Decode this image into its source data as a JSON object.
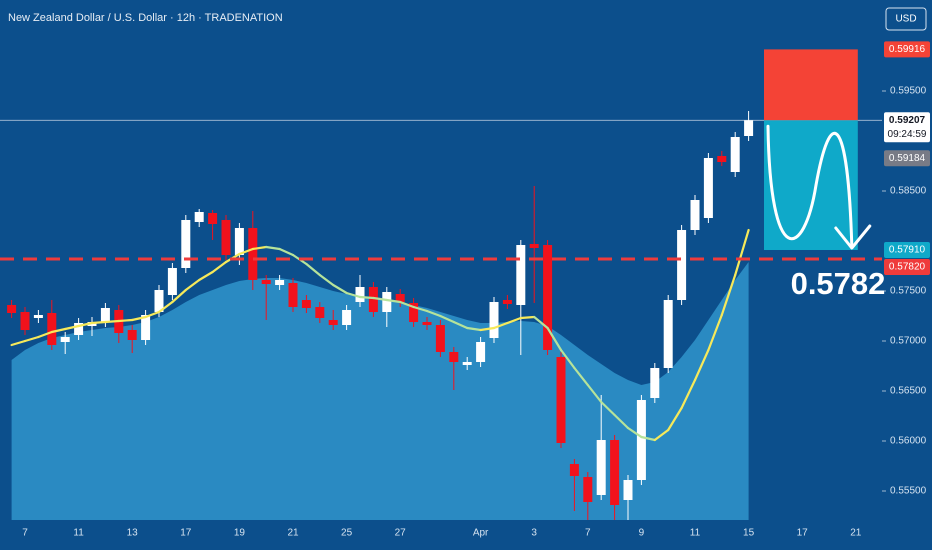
{
  "chart_data": {
    "type": "candlestick",
    "title": "New Zealand Dollar / U.S. Dollar · 12h · TRADENATION",
    "currency": "USD",
    "categories": [
      null,
      "7",
      null,
      null,
      null,
      "11",
      null,
      null,
      null,
      "13",
      null,
      null,
      null,
      "17",
      null,
      null,
      null,
      "19",
      null,
      null,
      null,
      "21",
      null,
      null,
      null,
      "25",
      null,
      null,
      null,
      "27",
      null,
      null,
      null,
      null,
      null,
      "Apr",
      null,
      null,
      null,
      "3",
      null,
      null,
      null,
      "7",
      null,
      null,
      null,
      "9",
      null,
      null,
      null,
      "11",
      null,
      null,
      null,
      "15",
      null,
      null,
      null,
      "17",
      null,
      null,
      null,
      "21"
    ],
    "open": [
      0.5736,
      0.5729,
      0.5723,
      0.5728,
      0.5699,
      0.5706,
      0.5715,
      0.5719,
      0.5731,
      0.5711,
      0.5701,
      0.5729,
      0.5746,
      0.5773,
      0.5819,
      0.5828,
      0.5821,
      0.5786,
      0.5813,
      0.5761,
      0.5756,
      0.5758,
      0.5741,
      0.5734,
      0.5721,
      0.5716,
      0.5739,
      0.5754,
      0.5729,
      0.5747,
      0.5738,
      0.5719,
      0.5716,
      0.5689,
      0.5676,
      0.5679,
      0.5703,
      0.5741,
      0.5736,
      0.5797,
      0.5796,
      0.5684,
      0.5577,
      0.5564,
      0.5546,
      0.5601,
      0.5541,
      0.5561,
      0.5643,
      0.5673,
      0.5741,
      0.5811,
      0.5823,
      0.5885,
      0.5869,
      0.5905,
      null,
      null,
      null,
      null,
      null,
      null,
      null,
      null
    ],
    "high": [
      0.5741,
      0.5734,
      0.5731,
      0.5741,
      0.5709,
      0.5723,
      0.5724,
      0.5738,
      0.5736,
      0.5716,
      0.5731,
      0.5756,
      0.5778,
      0.5826,
      0.5832,
      0.5831,
      0.5826,
      0.5818,
      0.583,
      0.5766,
      0.5766,
      0.5763,
      0.5746,
      0.5739,
      0.5731,
      0.5736,
      0.5766,
      0.5759,
      0.5754,
      0.5752,
      0.5743,
      0.5724,
      0.5721,
      0.5694,
      0.5684,
      0.5704,
      0.5744,
      0.5746,
      0.5801,
      0.5855,
      0.5801,
      0.5689,
      0.5582,
      0.5569,
      0.5646,
      0.5606,
      0.5566,
      0.5646,
      0.5678,
      0.5746,
      0.5816,
      0.5846,
      0.5888,
      0.589,
      0.5909,
      0.593,
      null,
      null,
      null,
      null,
      null,
      null,
      null,
      null
    ],
    "low": [
      0.5723,
      0.5706,
      0.5718,
      0.5691,
      0.5687,
      0.5701,
      0.5705,
      0.5714,
      0.5698,
      0.5688,
      0.5696,
      0.5724,
      0.5741,
      0.5768,
      0.5814,
      0.5801,
      0.5781,
      0.5776,
      0.5751,
      0.5721,
      0.5751,
      0.5729,
      0.5728,
      0.5718,
      0.5711,
      0.5711,
      0.5734,
      0.5724,
      0.5714,
      0.5734,
      0.5714,
      0.5711,
      0.5684,
      0.5651,
      0.5671,
      0.5674,
      0.5698,
      0.5732,
      0.5686,
      0.5738,
      0.5686,
      0.5593,
      0.553,
      0.5521,
      0.5541,
      0.5521,
      0.5521,
      0.5556,
      0.5638,
      0.5668,
      0.5736,
      0.5806,
      0.5818,
      0.5875,
      0.5864,
      0.59,
      null,
      null,
      null,
      null,
      null,
      null,
      null,
      null
    ],
    "close": [
      0.5728,
      0.5711,
      0.5726,
      0.5696,
      0.5704,
      0.5718,
      0.5719,
      0.5733,
      0.5708,
      0.5701,
      0.5726,
      0.5751,
      0.5773,
      0.5821,
      0.5829,
      0.5817,
      0.5786,
      0.5813,
      0.5761,
      0.5757,
      0.5761,
      0.5734,
      0.5733,
      0.5723,
      0.5716,
      0.5731,
      0.5754,
      0.5729,
      0.5749,
      0.5739,
      0.5719,
      0.5716,
      0.5689,
      0.5679,
      0.5679,
      0.5699,
      0.5739,
      0.5737,
      0.5796,
      0.5793,
      0.5691,
      0.5598,
      0.5565,
      0.5539,
      0.5601,
      0.5536,
      0.5561,
      0.5641,
      0.5673,
      0.5741,
      0.5811,
      0.5841,
      0.5883,
      0.5879,
      0.5904,
      0.59207,
      null,
      null,
      null,
      null,
      null,
      null,
      null,
      null
    ],
    "up_color": "#ffffff",
    "down_color": "#f2121c",
    "ylim": [
      0.5521,
      0.6041
    ],
    "yticks": [
      {
        "value": 0.555,
        "label": "0.55500"
      },
      {
        "value": 0.56,
        "label": "0.56000"
      },
      {
        "value": 0.565,
        "label": "0.56500"
      },
      {
        "value": 0.57,
        "label": "0.57000"
      },
      {
        "value": 0.575,
        "label": "0.57500"
      },
      {
        "value": 0.585,
        "label": "0.58500"
      },
      {
        "value": 0.595,
        "label": "0.59500"
      }
    ],
    "area": {
      "color": "#2a8ac2",
      "values": [
        0.5681,
        0.5691,
        0.5698,
        0.5703,
        0.5706,
        0.5709,
        0.5711,
        0.5713,
        0.5714,
        0.5716,
        0.5719,
        0.5724,
        0.5731,
        0.5739,
        0.5746,
        0.5751,
        0.5756,
        0.576,
        0.5762,
        0.5763,
        0.5763,
        0.5761,
        0.5758,
        0.5754,
        0.575,
        0.5747,
        0.5745,
        0.5743,
        0.5741,
        0.5739,
        0.5736,
        0.5733,
        0.5729,
        0.5725,
        0.5721,
        0.5718,
        0.5718,
        0.5719,
        0.572,
        0.5719,
        0.5715,
        0.5706,
        0.5696,
        0.5686,
        0.5677,
        0.5668,
        0.5661,
        0.5656,
        0.5659,
        0.5669,
        0.5684,
        0.5701,
        0.5721,
        0.5741,
        0.5761,
        0.5779,
        null,
        null,
        null,
        null,
        null,
        null,
        null,
        null
      ]
    },
    "moving_average": {
      "up_color": "#f6e95a",
      "down_color": "#b6e39a",
      "values": [
        0.5696,
        0.57,
        0.5704,
        0.5709,
        0.5712,
        0.5715,
        0.5718,
        0.5719,
        0.572,
        0.5721,
        0.5724,
        0.5729,
        0.5739,
        0.5751,
        0.5761,
        0.5769,
        0.5779,
        0.5787,
        0.5792,
        0.5794,
        0.5792,
        0.5786,
        0.5777,
        0.5766,
        0.5756,
        0.5748,
        0.5744,
        0.5743,
        0.5741,
        0.5739,
        0.5734,
        0.573,
        0.5725,
        0.5719,
        0.5713,
        0.5711,
        0.5713,
        0.5718,
        0.5723,
        0.5724,
        0.5713,
        0.5691,
        0.5673,
        0.5656,
        0.5639,
        0.5626,
        0.5613,
        0.5604,
        0.5601,
        0.5611,
        0.5633,
        0.5661,
        0.5691,
        0.5726,
        0.5766,
        0.5811,
        null,
        null,
        null,
        null,
        null,
        null,
        null,
        null
      ]
    },
    "position": {
      "entry": 0.59207,
      "stop": 0.59916,
      "target": {
        "value": 0.5791,
        "label": "0.57910"
      },
      "stop_color": "#f44336",
      "target_color": "#0fa9c9"
    },
    "price_line": {
      "value": 0.5782,
      "label": "0.57820",
      "color": "#ef3b3b"
    },
    "annotation": 0.5782,
    "countdown": "09:24:59",
    "secondary_price": 0.59184
  }
}
